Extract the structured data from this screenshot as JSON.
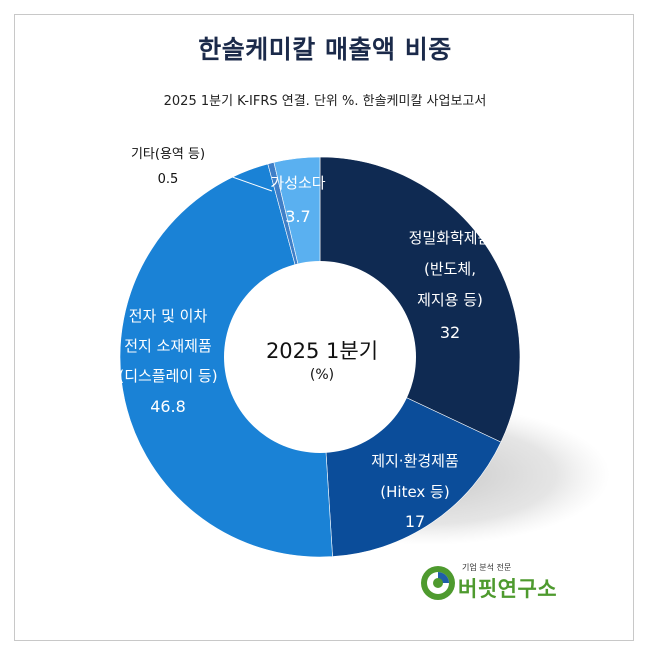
{
  "title": "한솔케미칼 매출액 비중",
  "subtitle": "2025 1분기 K-IFRS 연결. 단위 %. 한솔케미칼 사업보고서",
  "center": {
    "line1": "2025 1분기",
    "line2": "(%)"
  },
  "logo": {
    "tagline": "기업 분석 전문",
    "name": "버핏연구소"
  },
  "colors": {
    "precision_chem": "#0f2a52",
    "paper_env": "#0b4d9a",
    "electronics": "#1a82d6",
    "etc": "#3f7fc8",
    "caustic_soda": "#5ab0f0"
  },
  "chart_data": {
    "type": "pie",
    "donut": true,
    "slices": [
      {
        "key": "precision_chem",
        "label_lines": [
          "정밀화학제품",
          "(반도체,",
          "제지용 등)"
        ],
        "value": 32
      },
      {
        "key": "paper_env",
        "label_lines": [
          "제지·환경제품",
          "(Hitex 등)"
        ],
        "value": 17
      },
      {
        "key": "electronics",
        "label_lines": [
          "전자 및 이차",
          "전지 소재제품",
          "(디스플레이 등)"
        ],
        "value": 46.8
      },
      {
        "key": "etc",
        "label_lines": [
          "기타(용역 등)"
        ],
        "value": 0.5
      },
      {
        "key": "caustic_soda",
        "label_lines": [
          "가성소다"
        ],
        "value": 3.7
      }
    ]
  }
}
